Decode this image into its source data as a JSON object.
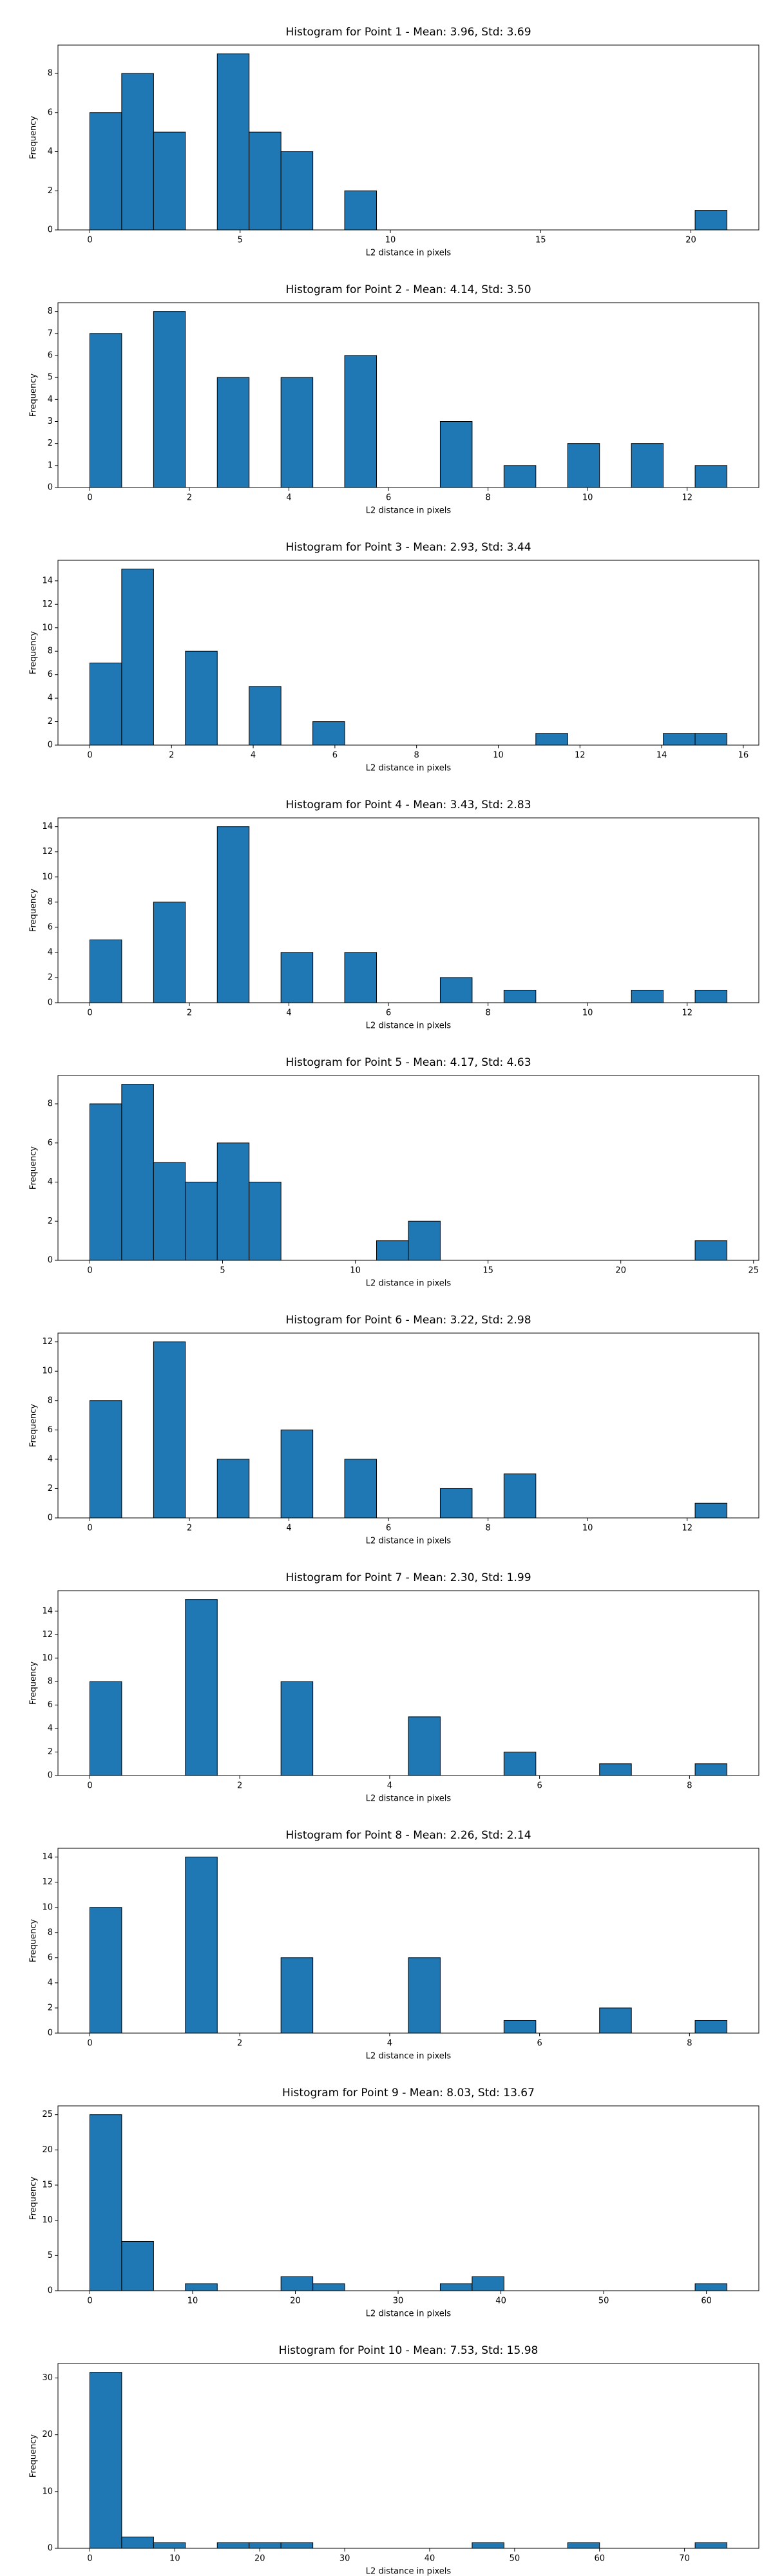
{
  "chart_data": [
    {
      "type": "histogram",
      "title": "Histogram for Point 1 - Mean: 3.96, Std: 3.69",
      "x_label": "L2 distance in pixels",
      "y_label": "Frequency",
      "color": "#1f77b4",
      "edgecolor": "#000000",
      "bins": [
        0,
        1.06,
        2.12,
        3.18,
        4.24,
        5.3,
        6.36,
        7.42,
        8.48,
        9.54,
        10.6,
        11.66,
        12.72,
        13.78,
        14.84,
        15.9,
        16.96,
        18.02,
        19.08,
        20.14,
        21.2
      ],
      "values": [
        6,
        8,
        5,
        0,
        9,
        5,
        4,
        0,
        2,
        0,
        0,
        0,
        0,
        0,
        0,
        0,
        0,
        0,
        0,
        1
      ],
      "xlim": [
        -1.06,
        22.26
      ],
      "ylim": [
        0,
        9.45
      ],
      "xticks": [
        0,
        5,
        10,
        15,
        20
      ],
      "yticks": [
        0,
        2,
        4,
        6,
        8
      ]
    },
    {
      "type": "histogram",
      "title": "Histogram for Point 2 - Mean: 4.14, Std: 3.50",
      "x_label": "L2 distance in pixels",
      "y_label": "Frequency",
      "color": "#1f77b4",
      "edgecolor": "#000000",
      "bins": [
        0,
        0.64,
        1.28,
        1.92,
        2.56,
        3.2,
        3.84,
        4.48,
        5.12,
        5.76,
        6.4,
        7.04,
        7.68,
        8.32,
        8.96,
        9.6,
        10.24,
        10.88,
        11.52,
        12.16,
        12.8
      ],
      "values": [
        7,
        0,
        8,
        0,
        5,
        0,
        5,
        0,
        6,
        0,
        0,
        3,
        0,
        1,
        0,
        2,
        0,
        2,
        0,
        1
      ],
      "xlim": [
        -0.64,
        13.44
      ],
      "ylim": [
        0,
        8.4
      ],
      "xticks": [
        0,
        2,
        4,
        6,
        8,
        10,
        12
      ],
      "yticks": [
        0,
        1,
        2,
        3,
        4,
        5,
        6,
        7,
        8
      ]
    },
    {
      "type": "histogram",
      "title": "Histogram for Point 3 - Mean: 2.93, Std: 3.44",
      "x_label": "L2 distance in pixels",
      "y_label": "Frequency",
      "color": "#1f77b4",
      "edgecolor": "#000000",
      "bins": [
        0,
        0.78,
        1.56,
        2.34,
        3.12,
        3.9,
        4.68,
        5.46,
        6.24,
        7.02,
        7.8,
        8.58,
        9.36,
        10.14,
        10.92,
        11.7,
        12.48,
        13.26,
        14.04,
        14.82,
        15.6
      ],
      "values": [
        7,
        15,
        0,
        8,
        0,
        5,
        0,
        2,
        0,
        0,
        0,
        0,
        0,
        0,
        1,
        0,
        0,
        0,
        1,
        1
      ],
      "xlim": [
        -0.78,
        16.38
      ],
      "ylim": [
        0,
        15.75
      ],
      "xticks": [
        0,
        2,
        4,
        6,
        8,
        10,
        12,
        14,
        16
      ],
      "yticks": [
        0,
        2,
        4,
        6,
        8,
        10,
        12,
        14
      ]
    },
    {
      "type": "histogram",
      "title": "Histogram for Point 4 - Mean: 3.43, Std: 2.83",
      "x_label": "L2 distance in pixels",
      "y_label": "Frequency",
      "color": "#1f77b4",
      "edgecolor": "#000000",
      "bins": [
        0,
        0.64,
        1.28,
        1.92,
        2.56,
        3.2,
        3.84,
        4.48,
        5.12,
        5.76,
        6.4,
        7.04,
        7.68,
        8.32,
        8.96,
        9.6,
        10.24,
        10.88,
        11.52,
        12.16,
        12.8
      ],
      "values": [
        5,
        0,
        8,
        0,
        14,
        0,
        4,
        0,
        4,
        0,
        0,
        2,
        0,
        1,
        0,
        0,
        0,
        1,
        0,
        1
      ],
      "xlim": [
        -0.64,
        13.44
      ],
      "ylim": [
        0,
        14.7
      ],
      "xticks": [
        0,
        2,
        4,
        6,
        8,
        10,
        12
      ],
      "yticks": [
        0,
        2,
        4,
        6,
        8,
        10,
        12,
        14
      ]
    },
    {
      "type": "histogram",
      "title": "Histogram for Point 5 - Mean: 4.17, Std: 4.63",
      "x_label": "L2 distance in pixels",
      "y_label": "Frequency",
      "color": "#1f77b4",
      "edgecolor": "#000000",
      "bins": [
        0,
        1.2,
        2.4,
        3.6,
        4.8,
        6,
        7.2,
        8.4,
        9.6,
        10.8,
        12,
        13.2,
        14.4,
        15.6,
        16.8,
        18,
        19.2,
        20.4,
        21.6,
        22.8,
        24
      ],
      "values": [
        8,
        9,
        5,
        4,
        6,
        4,
        0,
        0,
        0,
        1,
        2,
        0,
        0,
        0,
        0,
        0,
        0,
        0,
        0,
        1
      ],
      "xlim": [
        -1.2,
        25.2
      ],
      "ylim": [
        0,
        9.45
      ],
      "xticks": [
        0,
        5,
        10,
        15,
        20,
        25
      ],
      "yticks": [
        0,
        2,
        4,
        6,
        8
      ]
    },
    {
      "type": "histogram",
      "title": "Histogram for Point 6 - Mean: 3.22, Std: 2.98",
      "x_label": "L2 distance in pixels",
      "y_label": "Frequency",
      "color": "#1f77b4",
      "edgecolor": "#000000",
      "bins": [
        0,
        0.64,
        1.28,
        1.92,
        2.56,
        3.2,
        3.84,
        4.48,
        5.12,
        5.76,
        6.4,
        7.04,
        7.68,
        8.32,
        8.96,
        9.6,
        10.24,
        10.88,
        11.52,
        12.16,
        12.8
      ],
      "values": [
        8,
        0,
        12,
        0,
        4,
        0,
        6,
        0,
        4,
        0,
        0,
        2,
        0,
        3,
        0,
        0,
        0,
        0,
        0,
        1
      ],
      "xlim": [
        -0.64,
        13.44
      ],
      "ylim": [
        0,
        12.6
      ],
      "xticks": [
        0,
        2,
        4,
        6,
        8,
        10,
        12
      ],
      "yticks": [
        0,
        2,
        4,
        6,
        8,
        10,
        12
      ]
    },
    {
      "type": "histogram",
      "title": "Histogram for Point 7 - Mean: 2.30, Std: 1.99",
      "x_label": "L2 distance in pixels",
      "y_label": "Frequency",
      "color": "#1f77b4",
      "edgecolor": "#000000",
      "bins": [
        0,
        0.425,
        0.85,
        1.275,
        1.7,
        2.125,
        2.55,
        2.975,
        3.4,
        3.825,
        4.25,
        4.675,
        5.1,
        5.525,
        5.95,
        6.375,
        6.8,
        7.225,
        7.65,
        8.075,
        8.5
      ],
      "values": [
        8,
        0,
        0,
        15,
        0,
        0,
        8,
        0,
        0,
        0,
        5,
        0,
        0,
        2,
        0,
        0,
        1,
        0,
        0,
        1
      ],
      "xlim": [
        -0.425,
        8.925
      ],
      "ylim": [
        0,
        15.75
      ],
      "xticks": [
        0,
        2,
        4,
        6,
        8
      ],
      "yticks": [
        0,
        2,
        4,
        6,
        8,
        10,
        12,
        14
      ]
    },
    {
      "type": "histogram",
      "title": "Histogram for Point 8 - Mean: 2.26, Std: 2.14",
      "x_label": "L2 distance in pixels",
      "y_label": "Frequency",
      "color": "#1f77b4",
      "edgecolor": "#000000",
      "bins": [
        0,
        0.425,
        0.85,
        1.275,
        1.7,
        2.125,
        2.55,
        2.975,
        3.4,
        3.825,
        4.25,
        4.675,
        5.1,
        5.525,
        5.95,
        6.375,
        6.8,
        7.225,
        7.65,
        8.075,
        8.5
      ],
      "values": [
        10,
        0,
        0,
        14,
        0,
        0,
        6,
        0,
        0,
        0,
        6,
        0,
        0,
        1,
        0,
        0,
        2,
        0,
        0,
        1
      ],
      "xlim": [
        -0.425,
        8.925
      ],
      "ylim": [
        0,
        14.7
      ],
      "xticks": [
        0,
        2,
        4,
        6,
        8
      ],
      "yticks": [
        0,
        2,
        4,
        6,
        8,
        10,
        12,
        14
      ]
    },
    {
      "type": "histogram",
      "title": "Histogram for Point 9 - Mean: 8.03, Std: 13.67",
      "x_label": "L2 distance in pixels",
      "y_label": "Frequency",
      "color": "#1f77b4",
      "edgecolor": "#000000",
      "bins": [
        0,
        3.1,
        6.2,
        9.3,
        12.4,
        15.5,
        18.6,
        21.7,
        24.8,
        27.9,
        31,
        34.1,
        37.2,
        40.3,
        43.4,
        46.5,
        49.6,
        52.7,
        55.8,
        58.9,
        62
      ],
      "values": [
        25,
        7,
        0,
        1,
        0,
        0,
        2,
        1,
        0,
        0,
        0,
        1,
        2,
        0,
        0,
        0,
        0,
        0,
        0,
        1
      ],
      "xlim": [
        -3.1,
        65.1
      ],
      "ylim": [
        0,
        26.25
      ],
      "xticks": [
        0,
        10,
        20,
        30,
        40,
        50,
        60
      ],
      "yticks": [
        0,
        5,
        10,
        15,
        20,
        25
      ]
    },
    {
      "type": "histogram",
      "title": "Histogram for Point 10 - Mean: 7.53, Std: 15.98",
      "x_label": "L2 distance in pixels",
      "y_label": "Frequency",
      "color": "#1f77b4",
      "edgecolor": "#000000",
      "bins": [
        0,
        3.75,
        7.5,
        11.25,
        15,
        18.75,
        22.5,
        26.25,
        30,
        33.75,
        37.5,
        41.25,
        45,
        48.75,
        52.5,
        56.25,
        60,
        63.75,
        67.5,
        71.25,
        75
      ],
      "values": [
        31,
        2,
        1,
        0,
        1,
        1,
        1,
        0,
        0,
        0,
        0,
        0,
        1,
        0,
        0,
        1,
        0,
        0,
        0,
        1
      ],
      "xlim": [
        -3.75,
        78.75
      ],
      "ylim": [
        0,
        32.55
      ],
      "xticks": [
        0,
        10,
        20,
        30,
        40,
        50,
        60,
        70
      ],
      "yticks": [
        0,
        10,
        20,
        30
      ]
    }
  ]
}
